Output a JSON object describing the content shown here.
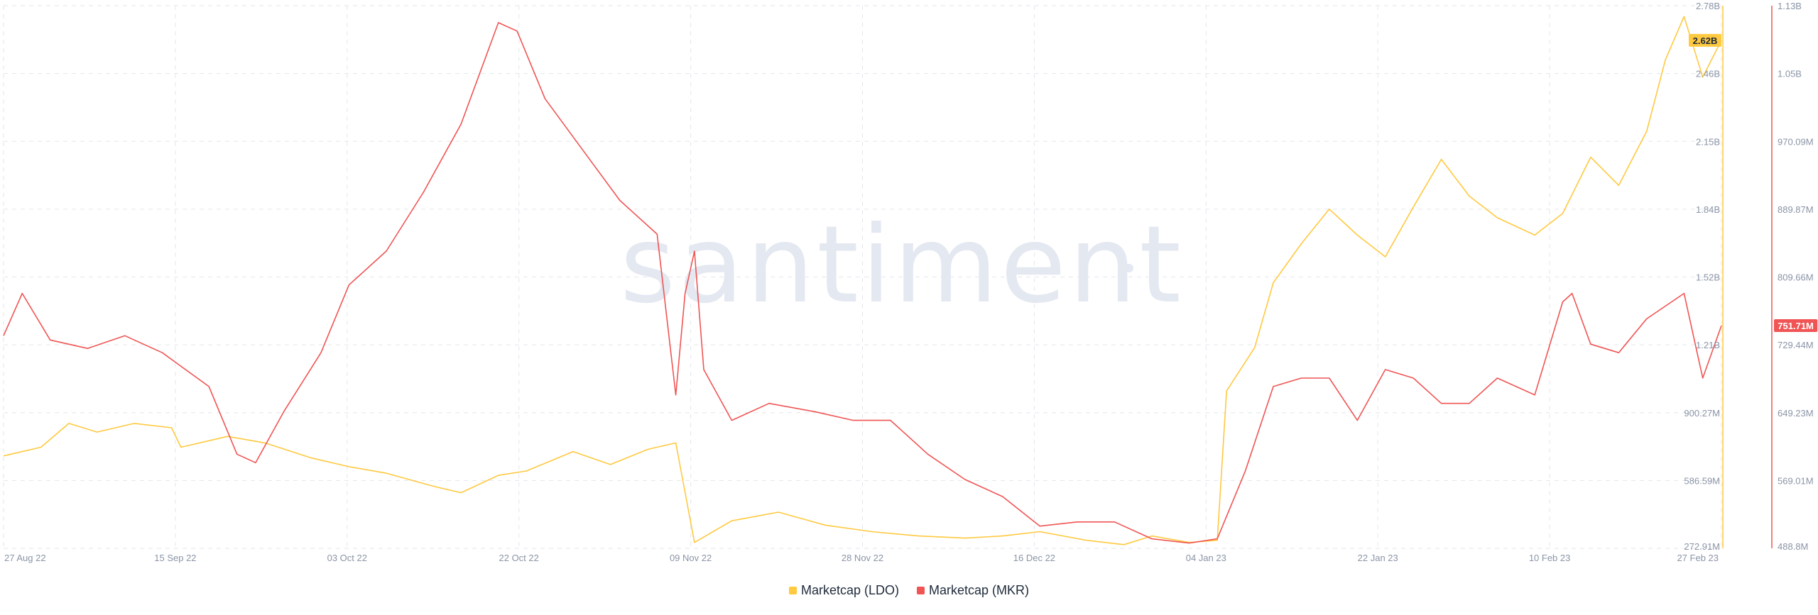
{
  "watermark": "santiment",
  "colors": {
    "ldo": "#ffc940",
    "mkr": "#f05454",
    "grid": "#e3e6ec",
    "axis_text": "#8a94a6"
  },
  "legend": {
    "ldo": "Marketcap (LDO)",
    "mkr": "Marketcap (MKR)"
  },
  "chart_data": {
    "type": "line",
    "title": "",
    "x_start": "2022-08-27",
    "x_end": "2023-02-27",
    "x_tick_labels": [
      "27 Aug 22",
      "15 Sep 22",
      "03 Oct 22",
      "22 Oct 22",
      "09 Nov 22",
      "28 Nov 22",
      "16 Dec 22",
      "04 Jan 23",
      "22 Jan 23",
      "10 Feb 23",
      "27 Feb 23"
    ],
    "y_left": {
      "series": "Marketcap (LDO)",
      "ylim": [
        272.91,
        2780
      ],
      "unit": "M",
      "tick_labels": [
        "2.78B",
        "2.46B",
        "2.15B",
        "1.84B",
        "1.52B",
        "1.21B",
        "900.27M",
        "586.59M",
        "272.91M"
      ],
      "current_label": "2.62B"
    },
    "y_right": {
      "series": "Marketcap (MKR)",
      "ylim": [
        488.8,
        1130
      ],
      "unit": "M",
      "tick_labels": [
        "1.13B",
        "1.05B",
        "970.09M",
        "889.87M",
        "809.66M",
        "729.44M",
        "649.23M",
        "569.01M",
        "488.8M"
      ],
      "current_label": "751.71M"
    },
    "grid": true,
    "legend_position": "bottom",
    "series": [
      {
        "name": "Marketcap (LDO)",
        "axis": "left",
        "x": [
          "2022-08-27",
          "2022-08-31",
          "2022-09-03",
          "2022-09-06",
          "2022-09-10",
          "2022-09-14",
          "2022-09-15",
          "2022-09-20",
          "2022-09-24",
          "2022-09-29",
          "2022-10-03",
          "2022-10-07",
          "2022-10-12",
          "2022-10-15",
          "2022-10-19",
          "2022-10-22",
          "2022-10-27",
          "2022-10-31",
          "2022-11-04",
          "2022-11-07",
          "2022-11-09",
          "2022-11-13",
          "2022-11-18",
          "2022-11-23",
          "2022-11-28",
          "2022-12-03",
          "2022-12-08",
          "2022-12-12",
          "2022-12-16",
          "2022-12-21",
          "2022-12-25",
          "2022-12-28",
          "2023-01-01",
          "2023-01-04",
          "2023-01-05",
          "2023-01-08",
          "2023-01-10",
          "2023-01-13",
          "2023-01-16",
          "2023-01-19",
          "2023-01-22",
          "2023-01-25",
          "2023-01-28",
          "2023-01-31",
          "2023-02-03",
          "2023-02-07",
          "2023-02-10",
          "2023-02-13",
          "2023-02-16",
          "2023-02-19",
          "2023-02-21",
          "2023-02-23",
          "2023-02-25",
          "2023-02-27"
        ],
        "y": [
          700,
          740,
          850,
          810,
          850,
          830,
          740,
          790,
          760,
          690,
          650,
          620,
          560,
          530,
          610,
          630,
          720,
          660,
          730,
          760,
          300,
          400,
          440,
          380,
          350,
          330,
          320,
          330,
          350,
          310,
          290,
          330,
          300,
          310,
          1000,
          1200,
          1500,
          1680,
          1840,
          1720,
          1620,
          1850,
          2070,
          1900,
          1800,
          1720,
          1820,
          2080,
          1950,
          2200,
          2530,
          2730,
          2450,
          2620
        ]
      },
      {
        "name": "Marketcap (MKR)",
        "axis": "right",
        "x": [
          "2022-08-27",
          "2022-08-29",
          "2022-09-01",
          "2022-09-05",
          "2022-09-09",
          "2022-09-13",
          "2022-09-18",
          "2022-09-21",
          "2022-09-23",
          "2022-09-26",
          "2022-09-30",
          "2022-10-03",
          "2022-10-07",
          "2022-10-11",
          "2022-10-15",
          "2022-10-19",
          "2022-10-21",
          "2022-10-24",
          "2022-10-28",
          "2022-11-01",
          "2022-11-05",
          "2022-11-07",
          "2022-11-08",
          "2022-11-09",
          "2022-11-10",
          "2022-11-13",
          "2022-11-17",
          "2022-11-22",
          "2022-11-26",
          "2022-11-30",
          "2022-12-04",
          "2022-12-08",
          "2022-12-12",
          "2022-12-16",
          "2022-12-20",
          "2022-12-24",
          "2022-12-28",
          "2023-01-01",
          "2023-01-04",
          "2023-01-07",
          "2023-01-10",
          "2023-01-13",
          "2023-01-16",
          "2023-01-19",
          "2023-01-22",
          "2023-01-25",
          "2023-01-28",
          "2023-01-31",
          "2023-02-03",
          "2023-02-07",
          "2023-02-10",
          "2023-02-11",
          "2023-02-13",
          "2023-02-16",
          "2023-02-19",
          "2023-02-23",
          "2023-02-25",
          "2023-02-27"
        ],
        "y": [
          740,
          790,
          735,
          725,
          740,
          720,
          680,
          600,
          590,
          650,
          720,
          800,
          840,
          910,
          990,
          1110,
          1100,
          1020,
          960,
          900,
          860,
          670,
          790,
          840,
          700,
          640,
          660,
          650,
          640,
          640,
          600,
          570,
          550,
          515,
          520,
          520,
          500,
          495,
          500,
          580,
          680,
          690,
          690,
          640,
          700,
          690,
          660,
          660,
          690,
          670,
          780,
          790,
          730,
          720,
          760,
          790,
          690,
          752
        ]
      }
    ]
  }
}
